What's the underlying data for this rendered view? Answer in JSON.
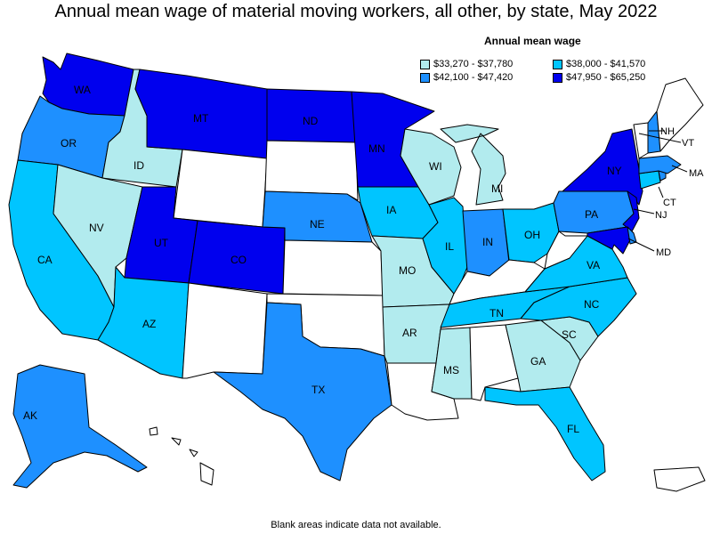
{
  "title": "Annual mean wage of material moving workers, all other, by state, May 2022",
  "legend": {
    "title": "Annual mean wage",
    "bins": [
      {
        "label": "$33,270 - $37,780",
        "color": "#b2ebee"
      },
      {
        "label": "$38,000 - $41,570",
        "color": "#00c5ff"
      },
      {
        "label": "$42,100 - $47,420",
        "color": "#1e90ff"
      },
      {
        "label": "$47,950 - $65,250",
        "color": "#0000ee"
      }
    ]
  },
  "footnote": "Blank areas indicate data not available.",
  "colors": {
    "bin1": "#b2ebee",
    "bin2": "#00c5ff",
    "bin3": "#1e90ff",
    "bin4": "#0000ee",
    "no_data": "#ffffff"
  },
  "states": {
    "WA": {
      "label": "WA",
      "bin": 4
    },
    "OR": {
      "label": "OR",
      "bin": 3
    },
    "CA": {
      "label": "CA",
      "bin": 2
    },
    "ID": {
      "label": "ID",
      "bin": 1
    },
    "NV": {
      "label": "NV",
      "bin": 1
    },
    "MT": {
      "label": "MT",
      "bin": 4
    },
    "UT": {
      "label": "UT",
      "bin": 4
    },
    "AZ": {
      "label": "AZ",
      "bin": 2
    },
    "CO": {
      "label": "CO",
      "bin": 4
    },
    "ND": {
      "label": "ND",
      "bin": 4
    },
    "NE": {
      "label": "NE",
      "bin": 3
    },
    "TX": {
      "label": "TX",
      "bin": 3
    },
    "MN": {
      "label": "MN",
      "bin": 4
    },
    "IA": {
      "label": "IA",
      "bin": 2
    },
    "MO": {
      "label": "MO",
      "bin": 1
    },
    "AR": {
      "label": "AR",
      "bin": 1
    },
    "WI": {
      "label": "WI",
      "bin": 1
    },
    "IL": {
      "label": "IL",
      "bin": 2
    },
    "MS": {
      "label": "MS",
      "bin": 1
    },
    "MI": {
      "label": "MI",
      "bin": 1
    },
    "IN": {
      "label": "IN",
      "bin": 3
    },
    "OH": {
      "label": "OH",
      "bin": 2
    },
    "TN": {
      "label": "TN",
      "bin": 2
    },
    "GA": {
      "label": "GA",
      "bin": 1
    },
    "FL": {
      "label": "FL",
      "bin": 2
    },
    "SC": {
      "label": "SC",
      "bin": 1
    },
    "NC": {
      "label": "NC",
      "bin": 2
    },
    "VA": {
      "label": "VA",
      "bin": 2
    },
    "PA": {
      "label": "PA",
      "bin": 3
    },
    "NY": {
      "label": "NY",
      "bin": 4
    },
    "NJ": {
      "label": "NJ",
      "bin": 4
    },
    "MD": {
      "label": "MD",
      "bin": 4
    },
    "DE": {
      "label": "",
      "bin": 3
    },
    "VT": {
      "label": "VT",
      "bin": 0
    },
    "NH": {
      "label": "NH",
      "bin": 3
    },
    "MA": {
      "label": "MA",
      "bin": 3
    },
    "CT": {
      "label": "CT",
      "bin": 2
    },
    "RI": {
      "label": "",
      "bin": 3
    },
    "ME": {
      "label": "",
      "bin": 0
    },
    "AK": {
      "label": "AK",
      "bin": 3
    },
    "WY": {
      "label": "",
      "bin": 0
    },
    "SD": {
      "label": "",
      "bin": 0
    },
    "KS": {
      "label": "",
      "bin": 0
    },
    "OK": {
      "label": "",
      "bin": 0
    },
    "NM": {
      "label": "",
      "bin": 0
    },
    "LA": {
      "label": "",
      "bin": 0
    },
    "AL": {
      "label": "",
      "bin": 0
    },
    "KY": {
      "label": "",
      "bin": 0
    },
    "WV": {
      "label": "",
      "bin": 0
    },
    "HI": {
      "label": "",
      "bin": 0
    },
    "PR": {
      "label": "",
      "bin": 0
    }
  }
}
